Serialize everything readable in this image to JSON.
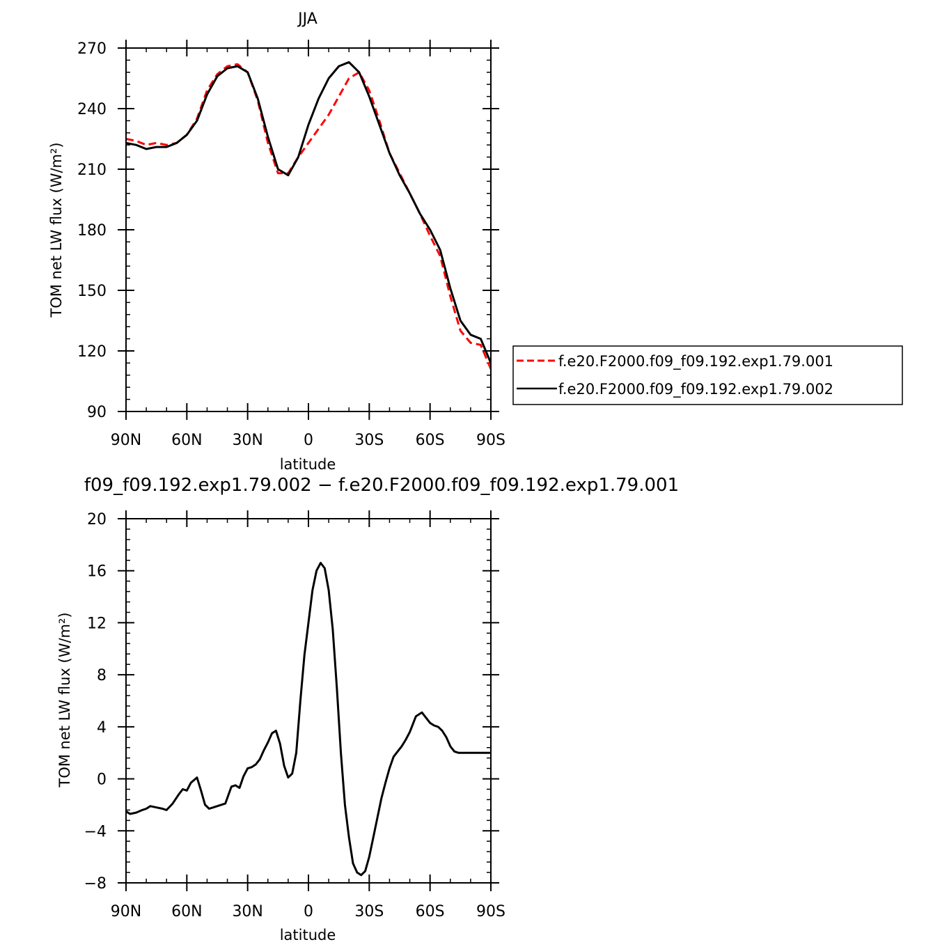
{
  "chart_data": [
    {
      "type": "line",
      "title": "JJA",
      "xlabel": "latitude",
      "ylabel": "TOM net LW flux (W/m²)",
      "ylim": [
        90,
        270
      ],
      "yticks": [
        90,
        120,
        150,
        180,
        210,
        240,
        270
      ],
      "xlim": [
        90,
        -90
      ],
      "xticks": [
        {
          "value": 90,
          "label": "90N"
        },
        {
          "value": 60,
          "label": "60N"
        },
        {
          "value": 30,
          "label": "30N"
        },
        {
          "value": 0,
          "label": "0"
        },
        {
          "value": -30,
          "label": "30S"
        },
        {
          "value": -60,
          "label": "60S"
        },
        {
          "value": -90,
          "label": "90S"
        }
      ],
      "legend_placement": "right, outside plot",
      "series": [
        {
          "name": "f.e20.F2000.f09_f09.192.exp1.79.001",
          "color": "#ff0000",
          "dash": "dashed",
          "x": [
            90,
            85,
            80,
            75,
            70,
            65,
            60,
            55,
            50,
            45,
            40,
            35,
            30,
            25,
            20,
            15,
            10,
            5,
            0,
            -5,
            -10,
            -15,
            -20,
            -25,
            -30,
            -35,
            -40,
            -45,
            -50,
            -55,
            -60,
            -65,
            -70,
            -75,
            -80,
            -85,
            -90
          ],
          "y": [
            225,
            224,
            222,
            223,
            222,
            223,
            227,
            235,
            249,
            257,
            261,
            262,
            258,
            244,
            223,
            208,
            208,
            216,
            223,
            230,
            237,
            246,
            255,
            258,
            249,
            234,
            218,
            208,
            198,
            188,
            177,
            167,
            147,
            130,
            124,
            123,
            111
          ]
        },
        {
          "name": "f.e20.F2000.f09_f09.192.exp1.79.002",
          "color": "#000000",
          "dash": "solid",
          "x": [
            90,
            85,
            80,
            75,
            70,
            65,
            60,
            55,
            50,
            45,
            40,
            35,
            30,
            25,
            20,
            15,
            10,
            5,
            0,
            -5,
            -10,
            -15,
            -20,
            -25,
            -30,
            -35,
            -40,
            -45,
            -50,
            -55,
            -60,
            -65,
            -70,
            -75,
            -80,
            -85,
            -90
          ],
          "y": [
            223,
            222,
            220,
            221,
            221,
            223,
            227,
            234,
            247,
            256,
            260,
            261,
            258,
            245,
            226,
            210,
            207,
            216,
            232,
            245,
            255,
            261,
            263,
            258,
            246,
            232,
            218,
            207,
            198,
            188,
            180,
            170,
            151,
            135,
            128,
            126,
            114
          ]
        }
      ]
    },
    {
      "type": "line",
      "title": "f09_f09.192.exp1.79.002 − f.e20.F2000.f09_f09.192.exp1.79.001",
      "xlabel": "latitude",
      "ylabel": "TOM net LW flux (W/m²)",
      "ylim": [
        -8,
        20
      ],
      "yticks": [
        -8,
        -4,
        0,
        4,
        8,
        12,
        16,
        20
      ],
      "xlim": [
        90,
        -90
      ],
      "xticks": [
        {
          "value": 90,
          "label": "90N"
        },
        {
          "value": 60,
          "label": "60N"
        },
        {
          "value": 30,
          "label": "30N"
        },
        {
          "value": 0,
          "label": "0"
        },
        {
          "value": -30,
          "label": "30S"
        },
        {
          "value": -60,
          "label": "60S"
        },
        {
          "value": -90,
          "label": "90S"
        }
      ],
      "series": [
        {
          "color": "#000000",
          "dash": "solid",
          "x": [
            90,
            88,
            85,
            82,
            80,
            78,
            75,
            72,
            70,
            67,
            64,
            62,
            60,
            58,
            55,
            53,
            51,
            49,
            47,
            45,
            43,
            41,
            38,
            36,
            34,
            32,
            30,
            28,
            26,
            24,
            22,
            20,
            18,
            16,
            14,
            12,
            10,
            8,
            6,
            4,
            2,
            0,
            -2,
            -4,
            -6,
            -8,
            -10,
            -12,
            -14,
            -16,
            -18,
            -20,
            -22,
            -24,
            -26,
            -28,
            -30,
            -32,
            -34,
            -36,
            -38,
            -40,
            -42,
            -44,
            -46,
            -48,
            -50,
            -53,
            -56,
            -60,
            -62,
            -64,
            -66,
            -68,
            -70,
            -72,
            -74,
            -76,
            -78,
            -80,
            -82,
            -84,
            -86,
            -88,
            -90
          ],
          "y": [
            -2.5,
            -2.7,
            -2.6,
            -2.4,
            -2.3,
            -2.1,
            -2.2,
            -2.3,
            -2.4,
            -1.9,
            -1.2,
            -0.8,
            -0.9,
            -0.3,
            0.1,
            -0.9,
            -2.0,
            -2.3,
            -2.2,
            -2.1,
            -2.0,
            -1.9,
            -0.6,
            -0.5,
            -0.7,
            0.2,
            0.8,
            0.9,
            1.1,
            1.5,
            2.2,
            2.8,
            3.5,
            3.7,
            2.7,
            1.0,
            0.1,
            0.4,
            2.0,
            6.0,
            9.5,
            12.0,
            14.5,
            16.0,
            16.6,
            16.2,
            14.5,
            11.5,
            7.0,
            2.0,
            -2.0,
            -4.5,
            -6.5,
            -7.2,
            -7.4,
            -7.1,
            -6.0,
            -4.5,
            -3.0,
            -1.5,
            -0.3,
            0.8,
            1.7,
            2.1,
            2.5,
            3.0,
            3.6,
            4.8,
            5.1,
            4.3,
            4.1,
            4.0,
            3.7,
            3.2,
            2.5,
            2.1,
            2.0,
            2.0,
            2.0,
            2.0,
            2.0,
            2.0,
            2.0,
            2.0,
            2.0
          ]
        }
      ]
    }
  ]
}
